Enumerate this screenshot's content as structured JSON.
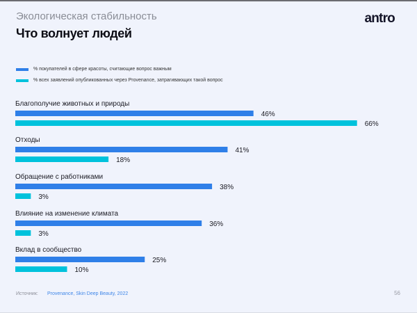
{
  "header": {
    "subtitle": "Экологическая стабильность",
    "title": "Что волнует людей",
    "logo": "antro"
  },
  "colors": {
    "series1": "#2f7fe8",
    "series2": "#00c2dc"
  },
  "chart_data": {
    "type": "bar",
    "orientation": "horizontal",
    "categories": [
      "Благополучие животных и природы",
      "Отходы",
      "Обращение с работниками",
      "Влияние на изменение климата",
      "Вклад в сообщество"
    ],
    "series": [
      {
        "name": "% покупателей в сфере красоты, считающие вопрос важным",
        "values": [
          46,
          41,
          38,
          36,
          25
        ],
        "labels": [
          "46%",
          "41%",
          "38%",
          "36%",
          "25%"
        ]
      },
      {
        "name": "% всех заявлений опубликованных через Provenance, затрагивающих такой вопрос",
        "values": [
          66,
          18,
          3,
          3,
          10
        ],
        "labels": [
          "66%",
          "18%",
          "3%",
          "3%",
          "10%"
        ]
      }
    ],
    "unit": "%",
    "grid": false,
    "legend": "top-left"
  },
  "footer": {
    "source_label": "Источник:",
    "source_value": "Provenance, Skin Deep Beauty, 2022",
    "page_number": "56"
  }
}
